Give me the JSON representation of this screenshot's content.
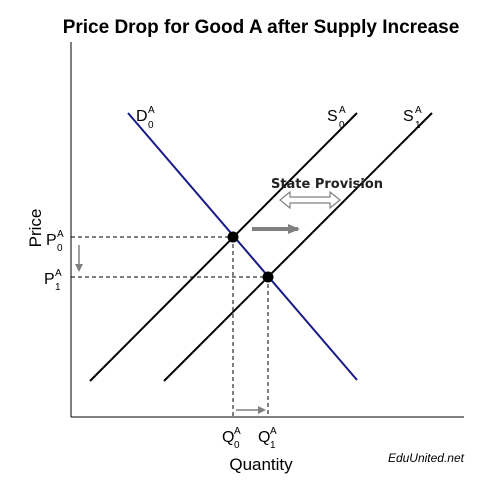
{
  "title": "Price Drop for Good A after Supply Increase",
  "axes": {
    "x_label": "Quantity",
    "y_label": "Price"
  },
  "curves": {
    "demand": {
      "main": "D",
      "sub": "0",
      "sup": "A",
      "color": "#1a1a8c"
    },
    "supply_0": {
      "main": "S",
      "sub": "0",
      "sup": "A",
      "color": "#000000"
    },
    "supply_1": {
      "main": "S",
      "sub": "1",
      "sup": "A",
      "color": "#000000"
    }
  },
  "price_labels": {
    "p0": {
      "main": "P",
      "sub": "0",
      "sup": "A"
    },
    "p1": {
      "main": "P",
      "sub": "1",
      "sup": "A"
    }
  },
  "quantity_labels": {
    "q0": {
      "main": "Q",
      "sub": "0",
      "sup": "A"
    },
    "q1": {
      "main": "Q",
      "sub": "1",
      "sup": "A"
    }
  },
  "annotation": {
    "text": "State Provision"
  },
  "credit": "EduUnited.net",
  "colors": {
    "arrow_gray": "#808080",
    "dashed": "#000000"
  }
}
